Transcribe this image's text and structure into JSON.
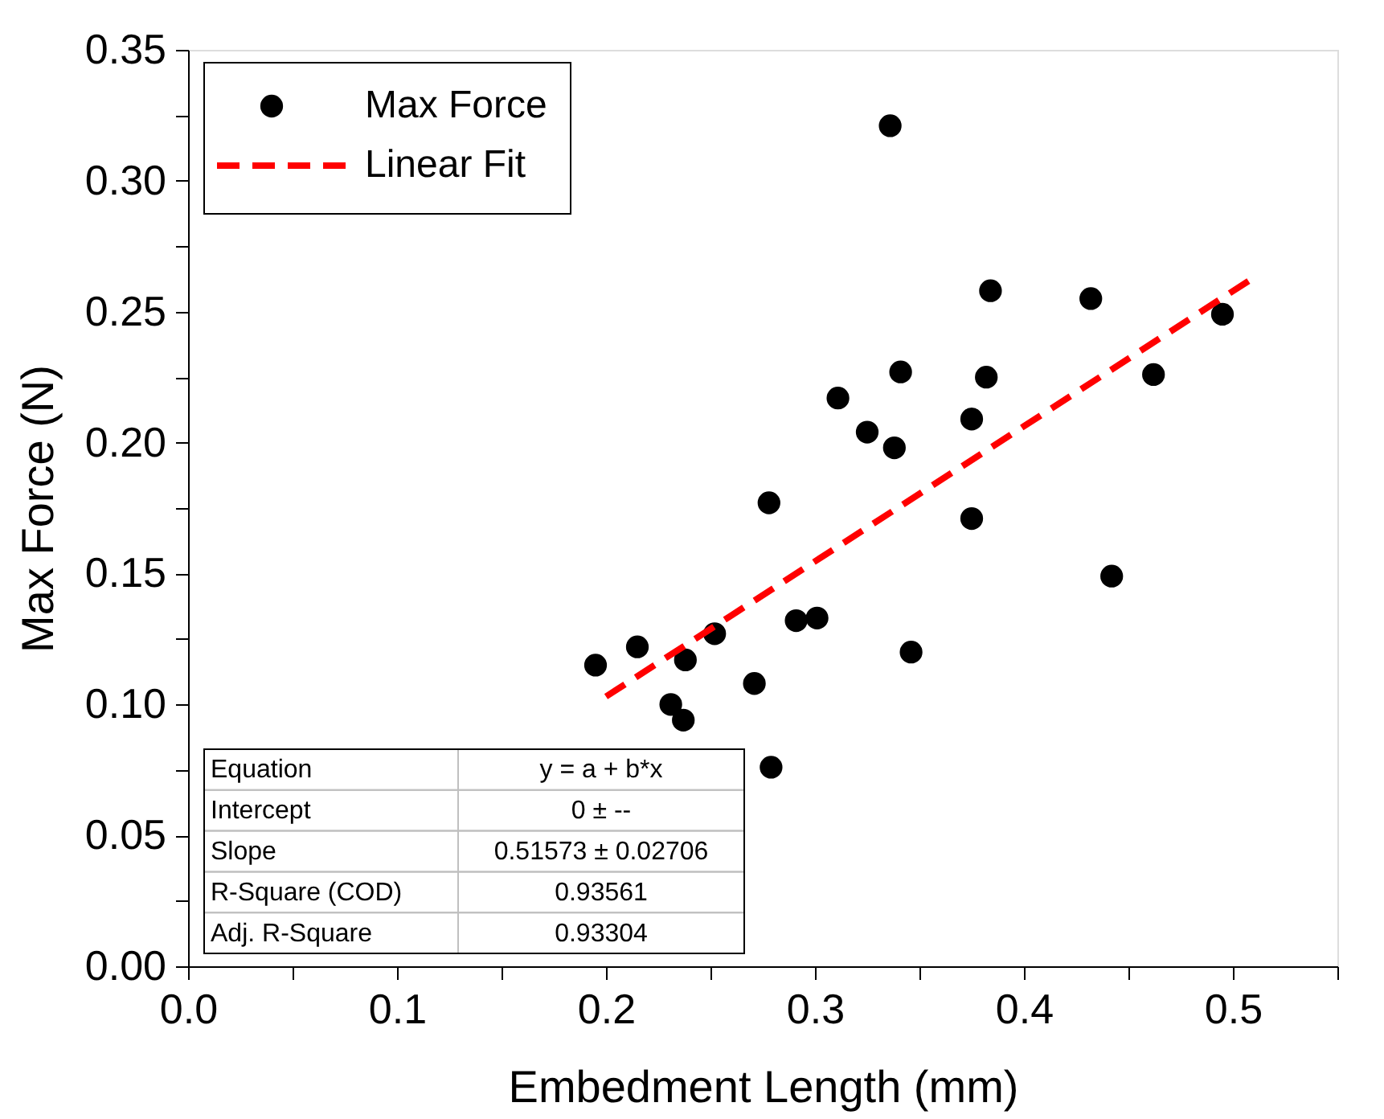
{
  "chart_data": {
    "type": "scatter",
    "xlabel": "Embedment Length (mm)",
    "ylabel": "Max Force (N)",
    "xlim": [
      0,
      0.55
    ],
    "ylim": [
      0,
      0.35
    ],
    "xticks": [
      {
        "value": 0,
        "label": "0.0"
      },
      {
        "value": 0.05,
        "label": null
      },
      0.1,
      {
        "value": 0.15,
        "label": null
      },
      0.2,
      {
        "value": 0.25,
        "label": null
      },
      0.3,
      {
        "value": 0.35,
        "label": null
      },
      0.4,
      {
        "value": 0.45,
        "label": null
      },
      0.5,
      {
        "value": 0.55,
        "label": null
      }
    ],
    "yticks": [
      {
        "value": 0,
        "label": "0.00"
      },
      {
        "value": 0.025,
        "label": null
      },
      {
        "value": 0.05,
        "label": "0.05"
      },
      {
        "value": 0.075,
        "label": null
      },
      {
        "value": 0.1,
        "label": "0.10"
      },
      {
        "value": 0.125,
        "label": null
      },
      {
        "value": 0.15,
        "label": "0.15"
      },
      {
        "value": 0.175,
        "label": null
      },
      {
        "value": 0.2,
        "label": "0.20"
      },
      {
        "value": 0.225,
        "label": null
      },
      {
        "value": 0.25,
        "label": "0.25"
      },
      {
        "value": 0.275,
        "label": null
      },
      {
        "value": 0.3,
        "label": "0.30"
      },
      {
        "value": 0.325,
        "label": null
      },
      {
        "value": 0.35,
        "label": "0.35"
      }
    ],
    "grid": false,
    "legend": "top left",
    "series": [
      {
        "name": "Max Force",
        "type": "scatter",
        "marker": "circle",
        "color": "#000000",
        "x": [
          0.195,
          0.215,
          0.231,
          0.237,
          0.238,
          0.252,
          0.271,
          0.278,
          0.279,
          0.291,
          0.301,
          0.311,
          0.325,
          0.336,
          0.338,
          0.341,
          0.346,
          0.375,
          0.375,
          0.382,
          0.384,
          0.432,
          0.442,
          0.462,
          0.495
        ],
        "values": [
          0.115,
          0.122,
          0.1,
          0.094,
          0.117,
          0.127,
          0.108,
          0.177,
          0.076,
          0.132,
          0.133,
          0.217,
          0.204,
          0.321,
          0.198,
          0.227,
          0.12,
          0.209,
          0.171,
          0.225,
          0.258,
          0.255,
          0.149,
          0.226,
          0.249
        ]
      },
      {
        "name": "Linear Fit",
        "type": "line",
        "line_style": "dashed",
        "color": "#ff0000",
        "x": [
          0.2,
          0.508
        ],
        "values": [
          0.103,
          0.262
        ]
      }
    ],
    "annotations": [
      "Equation",
      "y = a + b*x",
      "Intercept",
      "0 ± --",
      "Slope",
      "0.51573 ± 0.02706",
      "R-Square (COD)",
      "0.93561",
      "Adj. R-Square",
      "0.93304"
    ]
  }
}
